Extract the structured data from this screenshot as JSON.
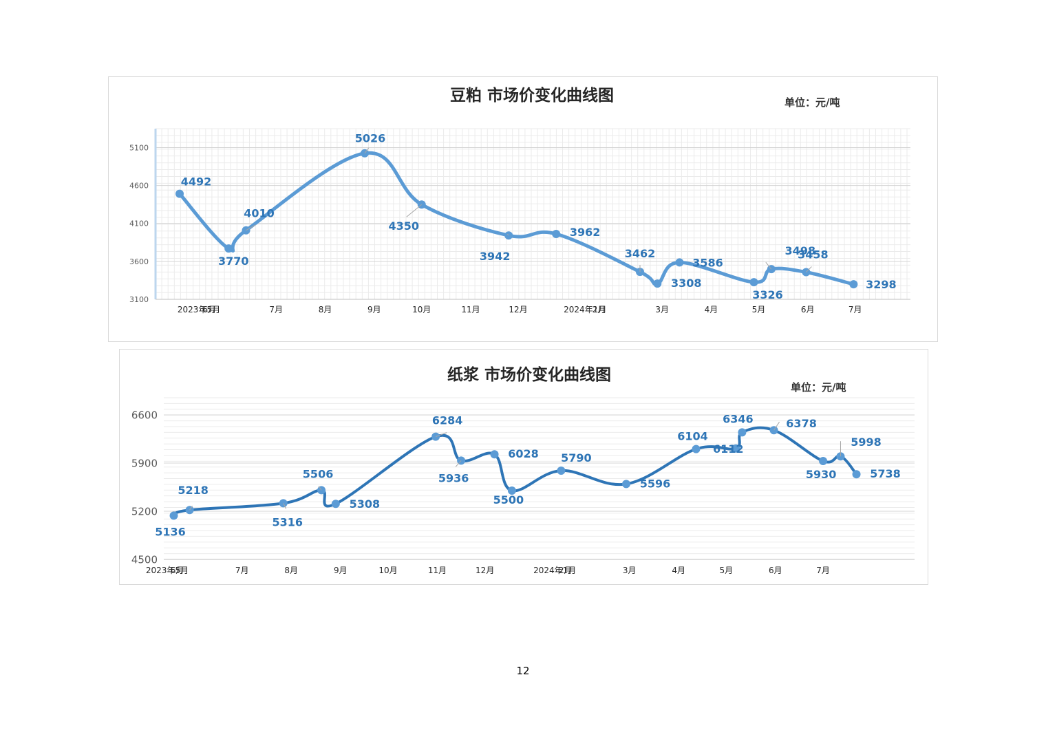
{
  "page": {
    "page_number": "12"
  },
  "colors": {
    "soy_line": "#5b9bd5",
    "pulp_line": "#2e75b6",
    "label": "#2e75b6",
    "grid": "#e3e3e3"
  },
  "chart_data": [
    {
      "type": "line",
      "title": "豆粕 市场价变化曲线图",
      "unit_label": "单位：元/吨",
      "ylim": [
        3100,
        5350
      ],
      "y_ticks": [
        3100,
        3600,
        4100,
        4600,
        5100
      ],
      "x_tick_labels": [
        "2023年5月",
        "6月",
        "7月",
        "8月",
        "9月",
        "10月",
        "11月",
        "12月",
        "2024年1月",
        "2月",
        "3月",
        "4月",
        "5月",
        "6月",
        "7月"
      ],
      "grid": true,
      "series": [
        {
          "x": [
            "2023-05-01",
            "2023-06-01",
            "2023-06-12",
            "2023-08-26",
            "2023-10-01",
            "2023-11-25",
            "2023-12-25",
            "2024-02-16",
            "2024-02-27",
            "2024-03-12",
            "2024-04-28",
            "2024-05-09",
            "2024-05-31",
            "2024-06-30"
          ],
          "values": [
            4492,
            3770,
            4010,
            5026,
            4350,
            3942,
            3962,
            3462,
            3308,
            3586,
            3326,
            3498,
            3458,
            3298
          ],
          "data_labels": [
            "4492",
            "3770",
            "4010",
            "5026",
            "4350",
            "3942",
            "3962",
            "3462",
            "3308",
            "3586",
            "3326",
            "3498",
            "3458",
            "3298"
          ]
        }
      ]
    },
    {
      "type": "line",
      "title": "纸浆 市场价变化曲线图",
      "unit_label": "单位：元/吨",
      "ylim": [
        4500,
        6850
      ],
      "y_ticks": [
        4500,
        5200,
        5900,
        6600
      ],
      "x_tick_labels": [
        "2023年5月",
        "6月",
        "7月",
        "8月",
        "9月",
        "10月",
        "11月",
        "12月",
        "2024年1月",
        "2月",
        "3月",
        "4月",
        "5月",
        "6月",
        "7月"
      ],
      "grid": true,
      "series": [
        {
          "x": [
            "2023-05-19",
            "2023-05-29",
            "2023-07-27",
            "2023-08-20",
            "2023-08-29",
            "2023-10-31",
            "2023-11-16",
            "2023-12-07",
            "2023-12-18",
            "2024-01-18",
            "2024-02-28",
            "2024-04-12",
            "2024-05-07",
            "2024-05-11",
            "2024-05-31",
            "2024-07-01",
            "2024-07-12",
            "2024-07-22"
          ],
          "values": [
            5136,
            5218,
            5316,
            5506,
            5308,
            6284,
            5936,
            6028,
            5500,
            5790,
            5596,
            6104,
            6112,
            6346,
            6378,
            5930,
            5998,
            5738
          ],
          "data_labels": [
            "5136",
            "5218",
            "5316",
            "5506",
            "5308",
            "6284",
            "5936",
            "6028",
            "5500",
            "5790",
            "5596",
            "6104",
            "6112",
            "6346",
            "6378",
            "5930",
            "5998",
            "5738"
          ]
        }
      ]
    }
  ]
}
